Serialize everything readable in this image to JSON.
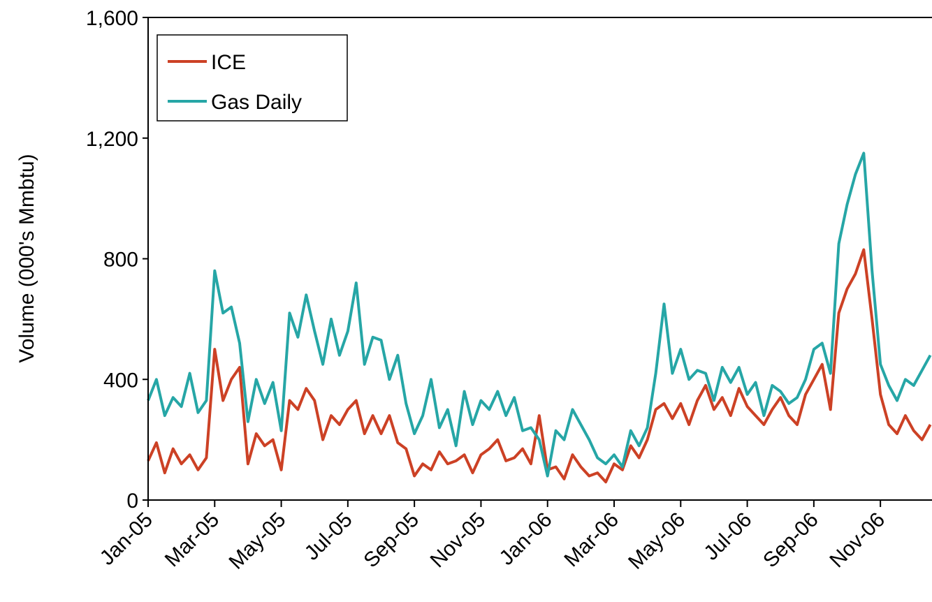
{
  "chart_data": {
    "type": "line",
    "ylabel": "Volume (000's Mmbtu)",
    "x": [
      0,
      0.25,
      0.5,
      0.75,
      1,
      1.25,
      1.5,
      1.75,
      2,
      2.25,
      2.5,
      2.75,
      3,
      3.25,
      3.5,
      3.75,
      4,
      4.25,
      4.5,
      4.75,
      5,
      5.25,
      5.5,
      5.75,
      6,
      6.25,
      6.5,
      6.75,
      7,
      7.25,
      7.5,
      7.75,
      8,
      8.25,
      8.5,
      8.75,
      9,
      9.25,
      9.5,
      9.75,
      10,
      10.25,
      10.5,
      10.75,
      11,
      11.25,
      11.5,
      11.75,
      12,
      12.25,
      12.5,
      12.75,
      13,
      13.25,
      13.5,
      13.75,
      14,
      14.25,
      14.5,
      14.75,
      15,
      15.25,
      15.5,
      15.75,
      16,
      16.25,
      16.5,
      16.75,
      17,
      17.25,
      17.5,
      17.75,
      18,
      18.25,
      18.5,
      18.75,
      19,
      19.25,
      19.5,
      19.75,
      20,
      20.25,
      20.5,
      20.75,
      21,
      21.25,
      21.5,
      21.75,
      22,
      22.25,
      22.5,
      22.75,
      23,
      23.25,
      23.5
    ],
    "series": [
      {
        "name": "ICE",
        "color": "#cc4125",
        "values": [
          130,
          190,
          90,
          170,
          120,
          150,
          100,
          140,
          500,
          330,
          400,
          440,
          120,
          220,
          180,
          200,
          100,
          330,
          300,
          370,
          330,
          200,
          280,
          250,
          300,
          330,
          220,
          280,
          220,
          280,
          190,
          170,
          80,
          120,
          100,
          160,
          120,
          130,
          150,
          90,
          150,
          170,
          200,
          130,
          140,
          170,
          120,
          280,
          100,
          110,
          70,
          150,
          110,
          80,
          90,
          60,
          120,
          100,
          180,
          140,
          200,
          300,
          320,
          270,
          320,
          250,
          330,
          380,
          300,
          340,
          280,
          370,
          310,
          280,
          250,
          300,
          340,
          280,
          250,
          350,
          400,
          450,
          300,
          620,
          700,
          750,
          830,
          600,
          350,
          250,
          220,
          280,
          230,
          200,
          250
        ]
      },
      {
        "name": "Gas Daily",
        "color": "#26a6a6",
        "values": [
          330,
          400,
          280,
          340,
          310,
          420,
          290,
          330,
          760,
          620,
          640,
          520,
          260,
          400,
          320,
          390,
          230,
          620,
          540,
          680,
          560,
          450,
          600,
          480,
          560,
          720,
          450,
          540,
          530,
          400,
          480,
          320,
          220,
          280,
          400,
          240,
          300,
          180,
          360,
          250,
          330,
          300,
          360,
          280,
          340,
          230,
          240,
          200,
          80,
          230,
          200,
          300,
          250,
          200,
          140,
          120,
          150,
          110,
          230,
          180,
          240,
          420,
          650,
          420,
          500,
          400,
          430,
          420,
          330,
          440,
          390,
          440,
          350,
          390,
          280,
          380,
          360,
          320,
          340,
          400,
          500,
          520,
          420,
          850,
          980,
          1080,
          1150,
          760,
          450,
          380,
          330,
          400,
          380,
          430,
          480
        ]
      }
    ],
    "xlim": [
      0,
      23.55
    ],
    "xticks": [
      {
        "value": 0,
        "label": "Jan-05"
      },
      {
        "value": 2,
        "label": "Mar-05"
      },
      {
        "value": 4,
        "label": "May-05"
      },
      {
        "value": 6,
        "label": "Jul-05"
      },
      {
        "value": 8,
        "label": "Sep-05"
      },
      {
        "value": 10,
        "label": "Nov-05"
      },
      {
        "value": 12,
        "label": "Jan-06"
      },
      {
        "value": 14,
        "label": "Mar-06"
      },
      {
        "value": 16,
        "label": "May-06"
      },
      {
        "value": 18,
        "label": "Jul-06"
      },
      {
        "value": 20,
        "label": "Sep-06"
      },
      {
        "value": 22,
        "label": "Nov-06"
      }
    ],
    "ylim": [
      0,
      1600
    ],
    "yticks": [
      0,
      400,
      800,
      {
        "value": 1200,
        "label": "1,200"
      },
      {
        "value": 1600,
        "label": "1,600"
      }
    ],
    "grid": false,
    "legend": "top-left"
  }
}
